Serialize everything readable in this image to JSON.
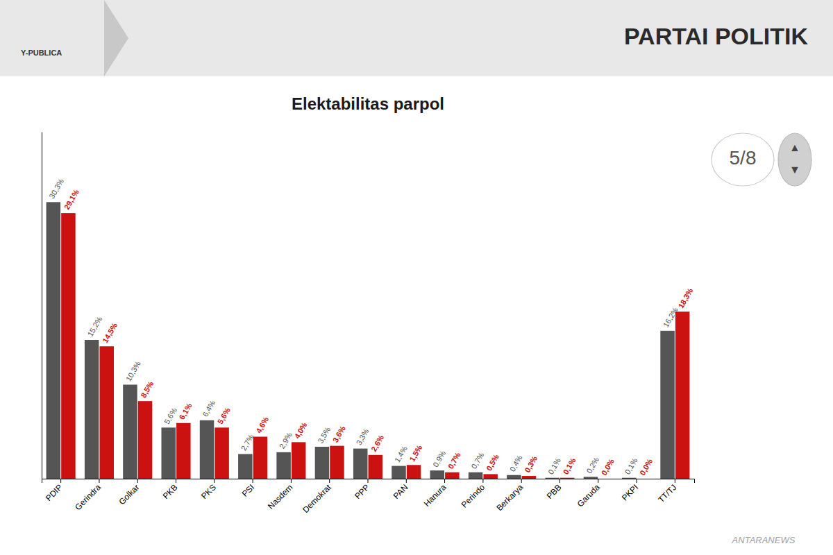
{
  "chart_data": {
    "type": "bar",
    "title": "Elektabilitas parpol",
    "annotations": [
      "PARTAI POLITIK",
      "Y-PUBLICA",
      "5/8",
      "▲",
      "▼",
      "ANTARANEWS"
    ],
    "categories": [
      "PDIP",
      "Gerindra",
      "Golkar",
      "PKB",
      "PKS",
      "PSI",
      "Nasdem",
      "Demokrat",
      "PPP",
      "PAN",
      "Hanura",
      "Perindo",
      "Berkarya",
      "PBB",
      "Garuda",
      "PKPI",
      "TT/TJ"
    ],
    "series": [
      {
        "color": "#555555",
        "values": [
          30.3,
          15.2,
          10.3,
          5.6,
          6.4,
          2.7,
          2.9,
          3.5,
          3.3,
          1.4,
          0.9,
          0.7,
          0.4,
          0.1,
          0.2,
          0.1,
          16.2
        ],
        "value_labels": [
          "30,3%",
          "15,2%",
          "10,3%",
          "5,6%",
          "6,4%",
          "2,7%",
          "2,9%",
          "3,5%",
          "3,3%",
          "1,4%",
          "0,9%",
          "0,7%",
          "0,4%",
          "0,1%",
          "0,2%",
          "0,1%",
          "16,2%"
        ]
      },
      {
        "color": "#cc1111",
        "values": [
          29.1,
          14.5,
          8.5,
          6.1,
          5.6,
          4.6,
          4.0,
          3.6,
          2.6,
          1.5,
          0.7,
          0.5,
          0.3,
          0.1,
          0.0,
          0.0,
          18.3
        ],
        "value_labels": [
          "29,1%",
          "14,5%",
          "8,5%",
          "6,1%",
          "5,6%",
          "4,6%",
          "4,0%",
          "3,6%",
          "2,6%",
          "1,5%",
          "0,7%",
          "0,5%",
          "0,3%",
          "0,1%",
          "0,0%",
          "0,0%",
          "18,3%"
        ]
      }
    ],
    "ylim": [
      0,
      38
    ],
    "grid": false,
    "data_labels": true,
    "tick_labels": "x"
  }
}
